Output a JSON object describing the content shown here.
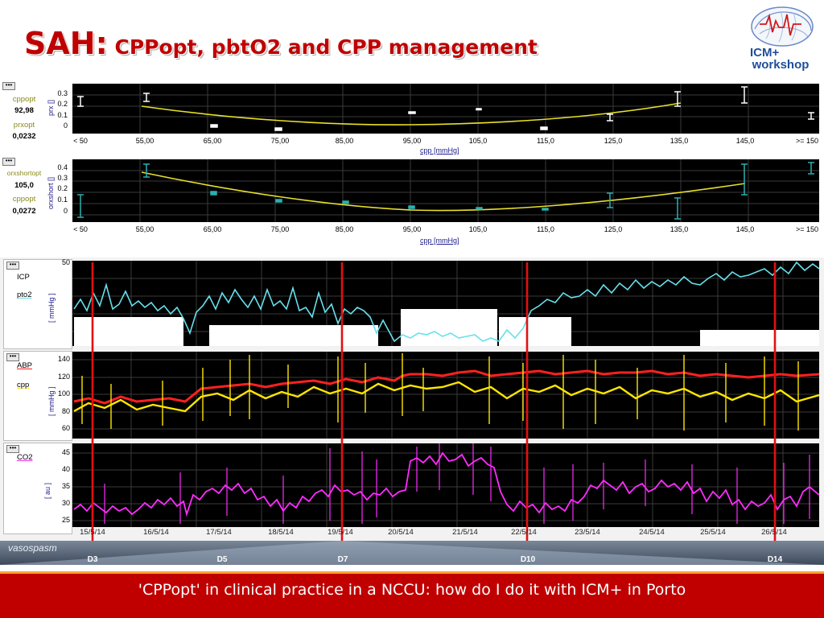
{
  "slide": {
    "title_big": "SAH:",
    "title_rest": " CPPopt, pbtO2 and CPP management",
    "footer": "'CPPopt' in clinical practice in a NCCU: how do I do it with ICM+ in Porto",
    "logo_line1": "ICM+",
    "logo_line2": "workshop"
  },
  "colors": {
    "title": "#c00000",
    "footer_bg": "#c00000",
    "footer_border": "#ff9f2f",
    "prx_curve": "#e8e02a",
    "orx_markers": "#2ab0b0",
    "icp": "#000000",
    "pto2": "#66e0ec",
    "abp": "#ff2020",
    "cpp": "#ffe600",
    "co2": "#ff2cff",
    "event_line": "#e21010"
  },
  "top_panel": {
    "labels": {
      "name1": "cppopt",
      "val1": "92,98",
      "name2": "prxopt",
      "val2": "0,0232"
    },
    "y_axis_label": "prx []",
    "y_ticks": [
      "0.3",
      "0.2",
      "0.1",
      "0"
    ],
    "x_axis_label": "cpp [mmHg]",
    "x_ticks": [
      "< 50",
      "55,00",
      "65,00",
      "75,00",
      "85,00",
      "95,00",
      "105,0",
      "115,0",
      "125,0",
      "135,0",
      "145,0",
      ">= 150"
    ]
  },
  "mid_panel": {
    "labels": {
      "name1": "orxshortopt",
      "val1": "105,0",
      "name2": "cppopt",
      "val2": "0,0272"
    },
    "y_axis_label": "orxshort []",
    "y_ticks": [
      "0.4",
      "0.3",
      "0.2",
      "0.1",
      "0"
    ],
    "x_axis_label": "cpp [mmHg]",
    "x_ticks": [
      "< 50",
      "55,00",
      "65,00",
      "75,00",
      "85,00",
      "95,00",
      "105,0",
      "115,0",
      "125,0",
      "135,0",
      "145,0",
      ">= 150"
    ]
  },
  "trend_panels": {
    "icp": {
      "label1": "ICP",
      "label2": "pto2",
      "unit": "[ mmHg ]",
      "y_top": "50"
    },
    "abp": {
      "label1": "ABP",
      "label2": "cpp",
      "unit": "[ mmHg ]",
      "y_ticks": [
        "140",
        "120",
        "100",
        "80",
        "60"
      ]
    },
    "co2": {
      "label1": "CO2",
      "unit": "[ au ]",
      "y_ticks": [
        "45",
        "40",
        "35",
        "30",
        "25"
      ]
    }
  },
  "dates": [
    "15/5/14",
    "16/5/14",
    "17/5/14",
    "18/5/14",
    "19/5/14",
    "20/5/14",
    "21/5/14",
    "22/5/14",
    "23/5/14",
    "24/5/14",
    "25/5/14",
    "26/5/14"
  ],
  "vasospasm": {
    "label": "vasospasm",
    "days": [
      "D3",
      "D5",
      "D7",
      "D10",
      "D14"
    ]
  }
}
